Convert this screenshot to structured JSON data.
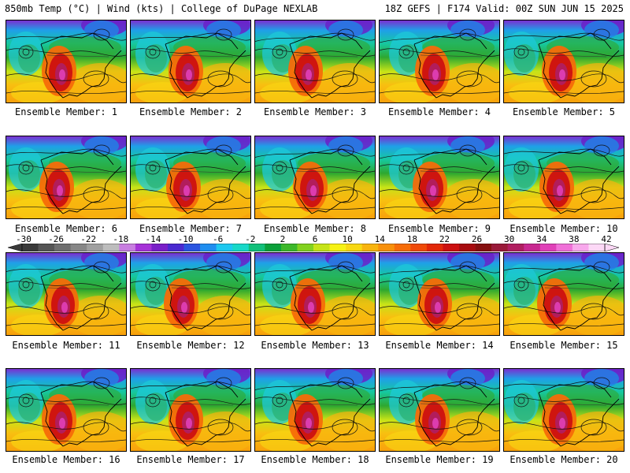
{
  "header": {
    "left_title": "850mb Temp (°C) | Wind (kts) | College of DuPage NEXLAB",
    "right_title": "18Z GEFS | F174 Valid: 00Z SUN JUN 15 2025"
  },
  "colorbar": {
    "labels": [
      "-30",
      "-26",
      "-22",
      "-18",
      "-14",
      "-10",
      "-6",
      "-2",
      "2",
      "6",
      "10",
      "14",
      "18",
      "22",
      "26",
      "30",
      "34",
      "38",
      "42"
    ],
    "colors": [
      "#3a3a3a",
      "#555555",
      "#6e6e6e",
      "#878787",
      "#a0a0a0",
      "#bdbdbd",
      "#c87ee0",
      "#a632d8",
      "#7a1fc8",
      "#4a2ad0",
      "#2a55e0",
      "#1f8ef0",
      "#1ec8f0",
      "#18d8c8",
      "#12c07a",
      "#0aa03a",
      "#3cb82a",
      "#82d21e",
      "#c6e418",
      "#f6f214",
      "#f8d812",
      "#f8b40e",
      "#f8900a",
      "#f66c08",
      "#f04a08",
      "#e22808",
      "#cc1010",
      "#a80c10",
      "#861010",
      "#9a1a3a",
      "#b01e60",
      "#c82890",
      "#e040b8",
      "#f070d8",
      "#f8a8ec",
      "#fcd8f6"
    ]
  },
  "members": [
    {
      "label": "Ensemble Member: 1"
    },
    {
      "label": "Ensemble Member: 2"
    },
    {
      "label": "Ensemble Member: 3"
    },
    {
      "label": "Ensemble Member: 4"
    },
    {
      "label": "Ensemble Member: 5"
    },
    {
      "label": "Ensemble Member: 6"
    },
    {
      "label": "Ensemble Member: 7"
    },
    {
      "label": "Ensemble Member: 8"
    },
    {
      "label": "Ensemble Member: 9"
    },
    {
      "label": "Ensemble Member: 10"
    },
    {
      "label": "Ensemble Member: 11"
    },
    {
      "label": "Ensemble Member: 12"
    },
    {
      "label": "Ensemble Member: 13"
    },
    {
      "label": "Ensemble Member: 14"
    },
    {
      "label": "Ensemble Member: 15"
    },
    {
      "label": "Ensemble Member: 16"
    },
    {
      "label": "Ensemble Member: 17"
    },
    {
      "label": "Ensemble Member: 18"
    },
    {
      "label": "Ensemble Member: 19"
    },
    {
      "label": "Ensemble Member: 20"
    }
  ]
}
